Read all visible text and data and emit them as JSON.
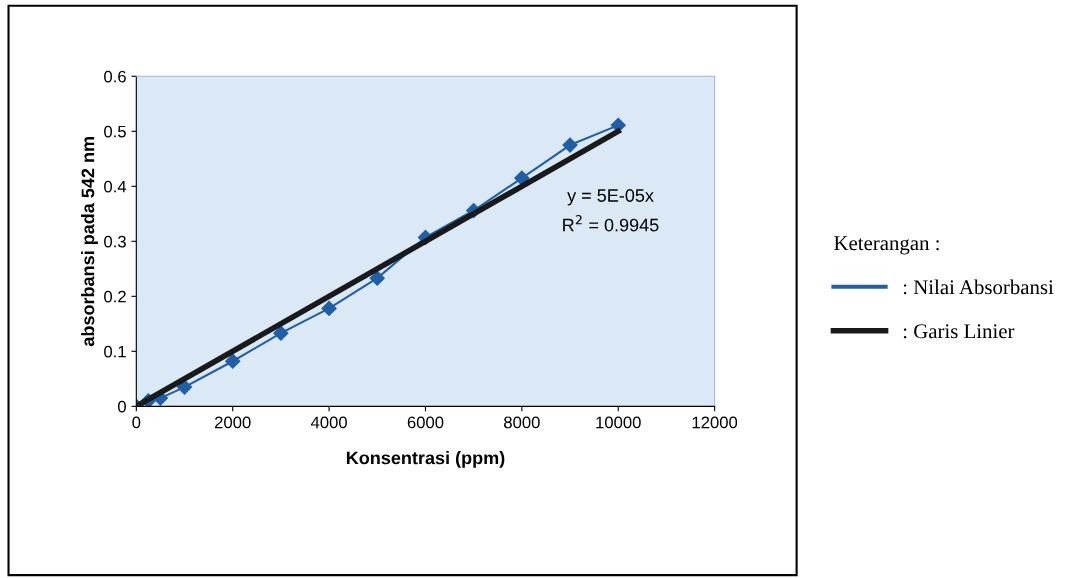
{
  "chart_data": {
    "type": "line",
    "xlabel": "Konsentrasi (ppm)",
    "ylabel": "absorbansi pada 542 nm",
    "xlim": [
      0,
      12000
    ],
    "xticks": [
      0,
      2000,
      4000,
      6000,
      8000,
      10000,
      12000
    ],
    "ylim": [
      0,
      0.6
    ],
    "yticks": [
      0,
      0.1,
      0.2,
      0.3,
      0.4,
      0.5,
      0.6
    ],
    "grid": false,
    "legend": "right",
    "legend_title": "Keterangan :",
    "annotations": [
      "y = 5E-05x",
      "R$^{2}$ = 0.9945"
    ],
    "series": [
      {
        "name": ": Nilai Absorbansi",
        "color": "#1f5fa8",
        "marker": "diamond",
        "x": [
          0,
          250,
          500,
          1000,
          2000,
          3000,
          4000,
          5000,
          6000,
          7000,
          8000,
          9000,
          10000
        ],
        "values": [
          0,
          0.01,
          0.015,
          0.035,
          0.082,
          0.133,
          0.178,
          0.233,
          0.307,
          0.356,
          0.415,
          0.475,
          0.511
        ]
      },
      {
        "name": ": Garis Linier",
        "color": "#1a1a1a",
        "marker": "none",
        "x": [
          0,
          10000
        ],
        "values": [
          0,
          0.5
        ]
      }
    ]
  }
}
